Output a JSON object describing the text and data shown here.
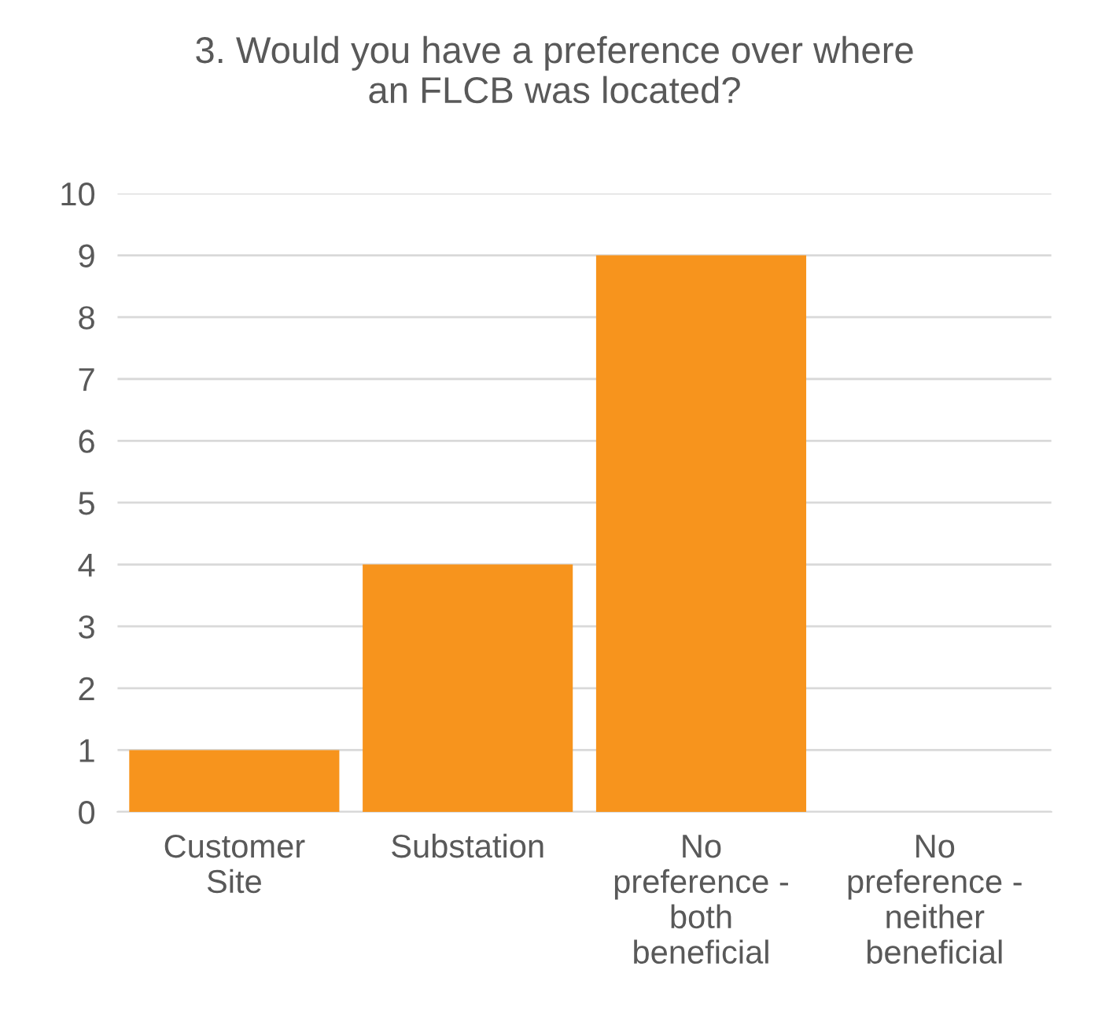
{
  "chart_data": {
    "type": "bar",
    "title": "3. Would you have a preference over where\nan FLCB was located?",
    "categories": [
      "Customer\nSite",
      "Substation",
      "No\npreference -\nboth\nbeneficial",
      "No\npreference -\nneither\nbeneficial"
    ],
    "values": [
      1,
      4,
      9,
      0
    ],
    "color": "#f7941d",
    "ylim": [
      0,
      10
    ],
    "yticks": [
      0,
      1,
      2,
      3,
      4,
      5,
      6,
      7,
      8,
      9,
      10
    ],
    "grid": "y",
    "legend": false
  }
}
